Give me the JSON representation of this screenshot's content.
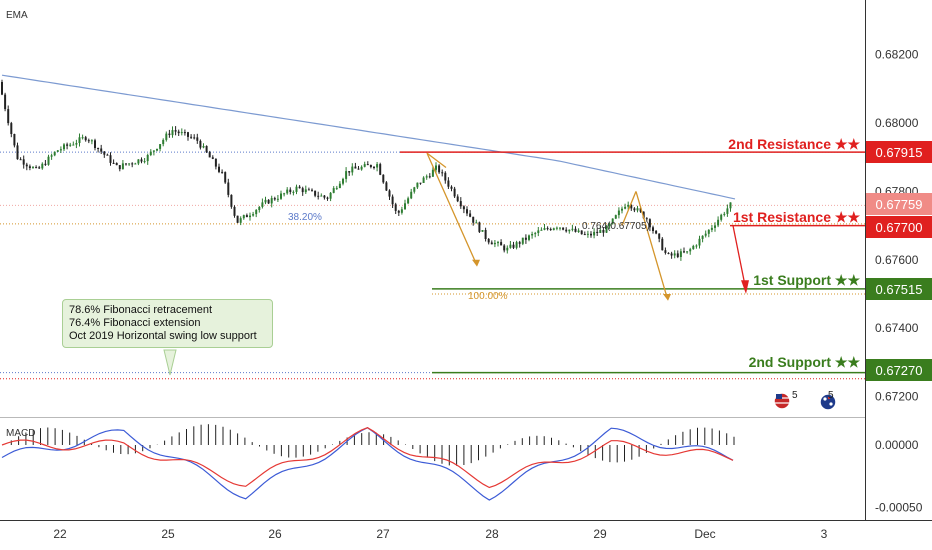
{
  "indicator_labels": {
    "ema": "EMA",
    "macd": "MACD"
  },
  "note": {
    "lines": [
      "78.6% Fibonacci retracement",
      "76.4% Fibonacci extension",
      "Oct 2019 Horizontal swing low support"
    ]
  },
  "colors": {
    "up": "#2e7d32",
    "down": "#222222",
    "ema": "#7c9ad1",
    "resistance": "#e0201f",
    "support": "#3a7d1e",
    "fib": "#d4952b",
    "macd": "#3c5bd6",
    "signal": "#e53935"
  },
  "chart_data": [
    {
      "type": "line",
      "title": "",
      "xlabel": "",
      "ylabel": "",
      "x_ticks": [
        "22",
        "25",
        "26",
        "27",
        "28",
        "29",
        "Dec",
        "3"
      ],
      "y_ticks": [
        "0.68200",
        "0.68000",
        "0.67800",
        "0.67600",
        "0.67400",
        "0.67200"
      ],
      "ylim": [
        0.6714,
        0.6836
      ],
      "grid": false,
      "series": [
        {
          "name": "EMA",
          "x": [
            "22",
            "25",
            "26",
            "27",
            "28",
            "29",
            "Dec"
          ],
          "values": [
            0.681,
            0.6801,
            0.6795,
            0.6791,
            0.6788,
            0.6784,
            0.6779
          ]
        },
        {
          "name": "",
          "x": [
            "22",
            "25",
            "26",
            "27",
            "28",
            "29",
            "Dec"
          ],
          "values": [
            0.6791,
            0.6797,
            0.6771,
            0.6788,
            0.6764,
            0.6772,
            0.6776
          ]
        }
      ],
      "levels": [
        {
          "label": "2nd Resistance ★★",
          "value": "0.67915",
          "kind": "resistance"
        },
        {
          "label": "1st Resistance ★★",
          "value": "0.67700",
          "kind": "resistance"
        },
        {
          "label": "1st Support ★★",
          "value": "0.67515",
          "kind": "support"
        },
        {
          "label": "2nd Support ★★",
          "value": "0.67270",
          "kind": "support"
        }
      ],
      "current_price": "0.67759",
      "annotations": [
        "38.20%",
        "0.764(0.67705)",
        "100.00%"
      ],
      "event_badges": [
        "5",
        "5"
      ]
    },
    {
      "type": "bar",
      "title": "MACD",
      "y_ticks": [
        "0.00000",
        "-0.00050"
      ],
      "ylim": [
        -0.0006,
        0.0002
      ],
      "series": [
        {
          "name": "MACD",
          "values": [
            -0.0001,
            0.0001,
            -0.0004,
            0.0001,
            -0.0004,
            0.0001,
            -0.0001
          ]
        },
        {
          "name": "Signal",
          "values": [
            0.0,
            0.0,
            -0.0003,
            0.0001,
            -0.0003,
            0.0,
            -0.0001
          ]
        }
      ]
    }
  ]
}
